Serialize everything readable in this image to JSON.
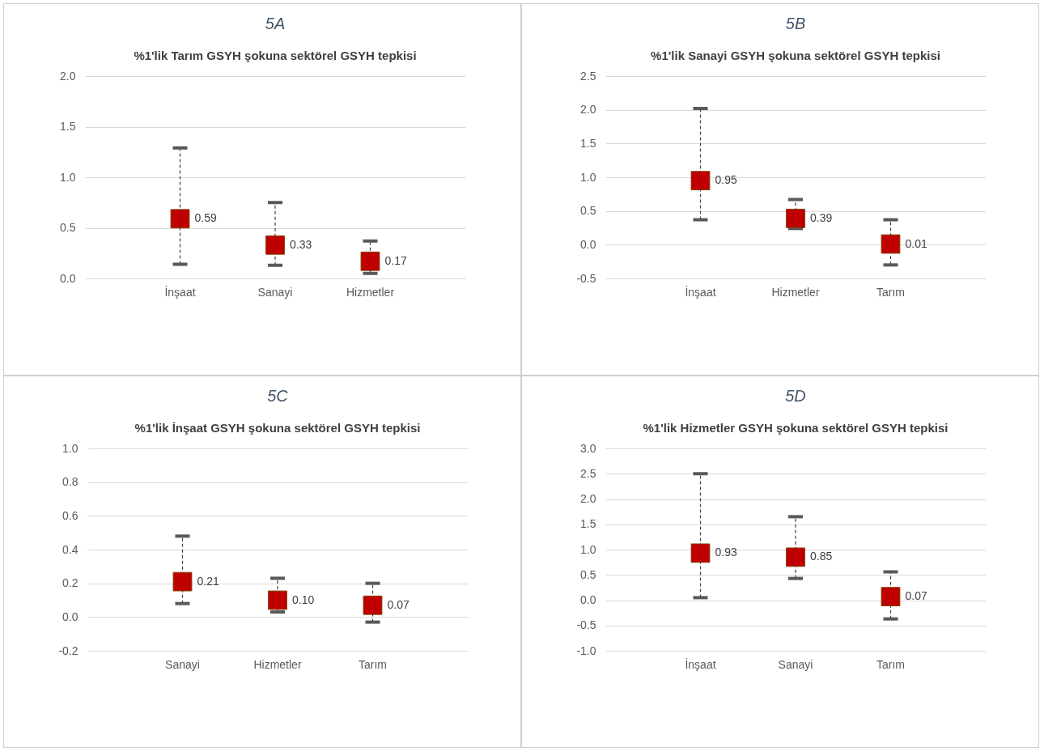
{
  "chart_data": [
    {
      "type": "scatter",
      "title": "5A",
      "subtitle": "%1'lik Tarım GSYH şokuna sektörel GSYH  tepkisi",
      "categories": [
        "İnşaat",
        "Sanayi",
        "Hizmetler"
      ],
      "values": [
        0.59,
        0.33,
        0.17
      ],
      "errors": [
        [
          0.14,
          1.29
        ],
        [
          0.13,
          0.75
        ],
        [
          0.05,
          0.37
        ]
      ],
      "value_labels": [
        "0.59",
        "0.33",
        "0.17"
      ],
      "color": "#c00000",
      "marker": "square",
      "ylim": [
        0,
        2
      ],
      "yticks": [
        {
          "value": 0,
          "label": "0.0"
        },
        0.5,
        {
          "value": 1,
          "label": "1.0"
        },
        1.5,
        {
          "value": 2,
          "label": "2.0"
        }
      ],
      "grid": "y"
    },
    {
      "type": "scatter",
      "title": "5B",
      "subtitle": "%1'lik Sanayi GSYH şokuna sektörel GSYH  tepkisi",
      "categories": [
        "İnşaat",
        "Hizmetler",
        "Tarım"
      ],
      "values": [
        0.95,
        0.39,
        0.01
      ],
      "errors": [
        [
          0.37,
          2.02
        ],
        [
          0.24,
          0.67
        ],
        [
          -0.3,
          0.37
        ]
      ],
      "value_labels": [
        "0.95",
        "0.39",
        "0.01"
      ],
      "color": "#c00000",
      "marker": "square",
      "ylim": [
        -0.5,
        2.5
      ],
      "yticks": [
        -0.5,
        {
          "value": 0,
          "label": "0.0"
        },
        0.5,
        {
          "value": 1,
          "label": "1.0"
        },
        1.5,
        {
          "value": 2,
          "label": "2.0"
        },
        2.5
      ],
      "grid": "y"
    },
    {
      "type": "scatter",
      "title": "5C",
      "subtitle": "%1'lik İnşaat GSYH şokuna sektörel GSYH  tepkisi",
      "categories": [
        "Sanayi",
        "Hizmetler",
        "Tarım"
      ],
      "values": [
        0.21,
        0.1,
        0.07
      ],
      "errors": [
        [
          0.08,
          0.48
        ],
        [
          0.03,
          0.23
        ],
        [
          -0.03,
          0.2
        ]
      ],
      "value_labels": [
        "0.21",
        "0.10",
        "0.07"
      ],
      "color": "#c00000",
      "marker": "square",
      "ylim": [
        -0.2,
        1
      ],
      "yticks": [
        -0.2,
        {
          "value": 0,
          "label": "0.0"
        },
        0.2,
        0.4,
        0.6,
        0.8,
        {
          "value": 1,
          "label": "1.0"
        }
      ],
      "grid": "y"
    },
    {
      "type": "scatter",
      "title": "5D",
      "subtitle": "%1'lik Hizmetler GSYH şokuna sektörel GSYH  tepkisi",
      "categories": [
        "İnşaat",
        "Sanayi",
        "Tarım"
      ],
      "values": [
        0.93,
        0.85,
        0.07
      ],
      "errors": [
        [
          0.05,
          2.5
        ],
        [
          0.43,
          1.65
        ],
        [
          -0.37,
          0.56
        ]
      ],
      "value_labels": [
        "0.93",
        "0.85",
        "0.07"
      ],
      "color": "#c00000",
      "marker": "square",
      "ylim": [
        -1,
        3
      ],
      "yticks": [
        {
          "value": -1,
          "label": "-1.0"
        },
        -0.5,
        {
          "value": 0,
          "label": "0.0"
        },
        0.5,
        {
          "value": 1,
          "label": "1.0"
        },
        1.5,
        {
          "value": 2,
          "label": "2.0"
        },
        2.5,
        {
          "value": 3,
          "label": "3.0"
        }
      ],
      "grid": "y"
    }
  ]
}
